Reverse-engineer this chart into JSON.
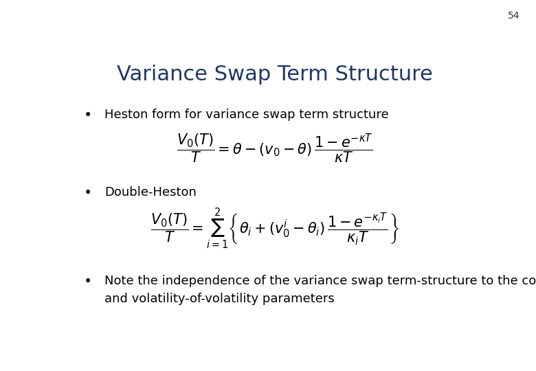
{
  "title": "Variance Swap Term Structure",
  "title_color": "#1F3864",
  "title_fontsize": 22,
  "slide_number": "54",
  "background_color": "#ffffff",
  "bullet_color": "#000000",
  "bullet_fontsize": 13,
  "bullets": [
    "Heston form for variance swap term structure",
    "Double-Heston",
    "Note the independence of the variance swap term-structure to the correlation\nand volatility-of-volatility parameters"
  ],
  "formula_fontsize": 15,
  "formula_color": "#000000"
}
